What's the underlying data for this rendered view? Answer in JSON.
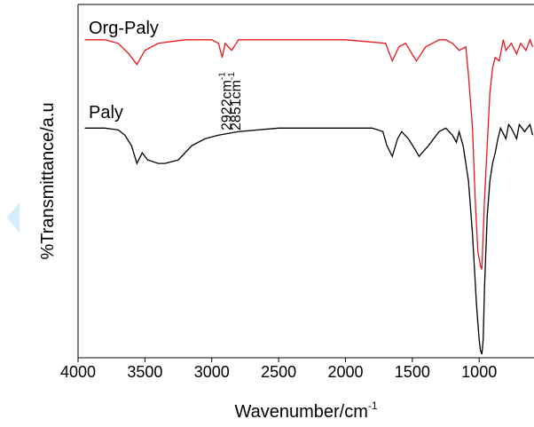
{
  "chart_data": {
    "type": "line",
    "xlabel": {
      "text": "Wavenumber/cm",
      "sup": "-1"
    },
    "ylabel": "%Transmittance/a.u",
    "xlim": [
      4000,
      590
    ],
    "ylim": [
      0,
      100
    ],
    "xticks": [
      4000,
      3500,
      3000,
      2500,
      2000,
      1500,
      1000
    ],
    "annotations": [
      {
        "text": "2922cm",
        "sup": "-1",
        "x": 2922
      },
      {
        "text": "2851cm",
        "sup": "-1",
        "x": 2851
      }
    ],
    "series": [
      {
        "name": "Org-Paly",
        "color": "#e8141a",
        "x": [
          3950,
          3800,
          3700,
          3620,
          3560,
          3500,
          3400,
          3200,
          3000,
          2950,
          2922,
          2900,
          2851,
          2800,
          2500,
          2000,
          1700,
          1650,
          1600,
          1550,
          1470,
          1400,
          1300,
          1250,
          1200,
          1150,
          1100,
          1080,
          1050,
          1030,
          1010,
          990,
          980,
          960,
          940,
          920,
          900,
          880,
          850,
          820,
          800,
          760,
          720,
          690,
          650,
          620,
          600
        ],
        "values": [
          90,
          90,
          89,
          86,
          83,
          87,
          89,
          90,
          90,
          89,
          85,
          89,
          87,
          90,
          90,
          90,
          89,
          84,
          88,
          89,
          84,
          88,
          90,
          90,
          89,
          87,
          88,
          80,
          65,
          45,
          30,
          26,
          25,
          45,
          60,
          75,
          82,
          85,
          84,
          90,
          87,
          89,
          86,
          89,
          87,
          90,
          88
        ]
      },
      {
        "name": "Paly",
        "color": "#000000",
        "x": [
          3950,
          3800,
          3700,
          3650,
          3600,
          3560,
          3520,
          3480,
          3400,
          3350,
          3250,
          3150,
          3050,
          2950,
          2800,
          2500,
          2000,
          1800,
          1720,
          1690,
          1650,
          1610,
          1580,
          1530,
          1480,
          1450,
          1380,
          1300,
          1250,
          1200,
          1170,
          1150,
          1120,
          1080,
          1050,
          1020,
          1000,
          990,
          980,
          970,
          960,
          940,
          920,
          900,
          880,
          860,
          840,
          800,
          780,
          760,
          720,
          700,
          660,
          620,
          600
        ],
        "values": [
          65,
          65,
          64.5,
          63,
          60,
          55,
          58,
          56,
          55,
          55,
          56,
          60,
          62,
          63,
          64,
          65,
          65,
          65,
          64,
          60,
          57,
          62,
          64,
          62,
          59,
          57,
          60,
          64,
          65,
          63,
          61,
          64,
          60,
          50,
          35,
          15,
          5,
          2,
          1,
          5,
          20,
          40,
          50,
          55,
          58,
          62,
          65,
          62,
          66,
          65,
          62,
          66,
          64,
          66,
          63
        ]
      }
    ]
  }
}
